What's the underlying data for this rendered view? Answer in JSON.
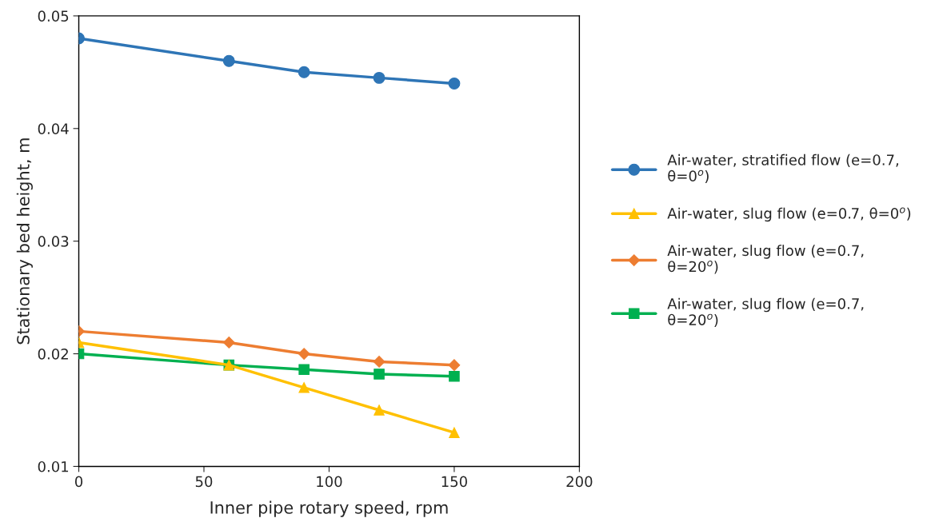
{
  "chart_data": {
    "type": "line",
    "xlabel": "Inner pipe rotary speed, rpm",
    "ylabel": "Stationary bed height, m",
    "x": [
      0,
      60,
      90,
      120,
      150
    ],
    "series": [
      {
        "name": "Air-water, stratified flow (e=0.7,\nθ=0$^{o}$)",
        "color": "#2e75b6",
        "marker": "circle",
        "values": [
          0.048,
          0.046,
          0.045,
          0.0445,
          0.044
        ]
      },
      {
        "name": "Air-water, slug flow (e=0.7, θ=0$^{o}$)",
        "color": "#ffc000",
        "marker": "triangle",
        "values": [
          0.021,
          0.019,
          0.017,
          0.015,
          0.013
        ]
      },
      {
        "name": "Air-water, slug flow (e=0.7,\nθ=20$^{o}$)",
        "color": "#ed7d31",
        "marker": "diamond",
        "values": [
          0.022,
          0.021,
          0.02,
          0.0193,
          0.019
        ]
      },
      {
        "name": "Air-water, slug flow (e=0.7,\nθ=20$^{o}$)",
        "color": "#00b050",
        "marker": "square",
        "values": [
          0.02,
          0.019,
          0.0186,
          0.0182,
          0.018
        ]
      }
    ],
    "xlim": [
      0,
      200
    ],
    "xticks": [
      0,
      50,
      100,
      150,
      200
    ],
    "ylim": [
      0.01,
      0.05
    ],
    "yticks": [
      0.01,
      0.02,
      0.03,
      0.04,
      0.05
    ],
    "grid": false,
    "legend": "right",
    "line_style": "solid"
  }
}
